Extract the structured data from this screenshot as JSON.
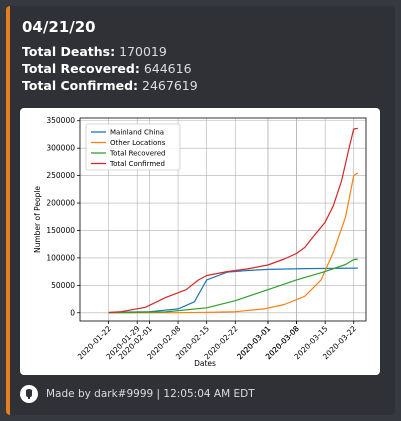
{
  "embed": {
    "accent_color": "#e67e22",
    "title": "04/21/20",
    "deaths_label": "Total Deaths:",
    "deaths_value": "170019",
    "recovered_label": "Total Recovered:",
    "recovered_value": "644616",
    "confirmed_label": "Total Confirmed:",
    "confirmed_value": "2467619",
    "footer_icon": "bot-avatar-icon",
    "footer_text": "Made by dark#9999 | 12:05:04 AM EDT"
  },
  "chart_data": {
    "type": "line",
    "title": "",
    "xlabel": "Dates",
    "ylabel": "Number of People",
    "grid": true,
    "legend_position": "top-left",
    "x_range": [
      "2020-01-15",
      "2020-03-25"
    ],
    "ylim": [
      -15000,
      355000
    ],
    "yticks": [
      0,
      50000,
      100000,
      150000,
      200000,
      250000,
      300000,
      350000
    ],
    "xticks": [
      "2020-01-22",
      "2020-01-29",
      "2020-02-01",
      "2020-02-08",
      "2020-02-15",
      "2020-02-22",
      "2020-03-01",
      "2020-03-08",
      "2020-03-15",
      "2020-03-22"
    ],
    "extra_xticks": [
      "2020-03-01",
      "2020-03-08"
    ],
    "series": [
      {
        "name": "Mainland China",
        "color": "#1f77b4",
        "x": [
          "2020-01-22",
          "2020-02-01",
          "2020-02-08",
          "2020-02-12",
          "2020-02-15",
          "2020-02-20",
          "2020-02-25",
          "2020-03-01",
          "2020-03-10",
          "2020-03-23"
        ],
        "y": [
          500,
          2000,
          7000,
          20000,
          60000,
          74000,
          77000,
          79000,
          80500,
          81500
        ]
      },
      {
        "name": "Other Locations",
        "color": "#ff7f0e",
        "x": [
          "2020-01-22",
          "2020-02-08",
          "2020-02-15",
          "2020-02-22",
          "2020-02-29",
          "2020-03-05",
          "2020-03-10",
          "2020-03-14",
          "2020-03-17",
          "2020-03-20",
          "2020-03-22",
          "2020-03-23"
        ],
        "y": [
          0,
          200,
          800,
          2000,
          7000,
          15000,
          30000,
          60000,
          110000,
          175000,
          250000,
          255000
        ]
      },
      {
        "name": "Total Recovered",
        "color": "#2ca02c",
        "x": [
          "2020-01-22",
          "2020-02-05",
          "2020-02-15",
          "2020-02-22",
          "2020-03-01",
          "2020-03-08",
          "2020-03-15",
          "2020-03-20",
          "2020-03-22",
          "2020-03-23"
        ],
        "y": [
          0,
          1500,
          9000,
          22000,
          42000,
          60000,
          75000,
          88000,
          97000,
          98000
        ]
      },
      {
        "name": "Total Confirmed",
        "color": "#d62728",
        "x": [
          "2020-01-22",
          "2020-01-25",
          "2020-01-31",
          "2020-02-05",
          "2020-02-10",
          "2020-02-13",
          "2020-02-15",
          "2020-02-20",
          "2020-02-25",
          "2020-03-01",
          "2020-03-05",
          "2020-03-08",
          "2020-03-10",
          "2020-03-12",
          "2020-03-15",
          "2020-03-17",
          "2020-03-19",
          "2020-03-21",
          "2020-03-22",
          "2020-03-23"
        ],
        "y": [
          500,
          2000,
          10000,
          28000,
          42000,
          60000,
          68000,
          75000,
          80000,
          87000,
          98000,
          108000,
          119000,
          138000,
          165000,
          195000,
          240000,
          305000,
          335000,
          336000
        ]
      }
    ]
  }
}
